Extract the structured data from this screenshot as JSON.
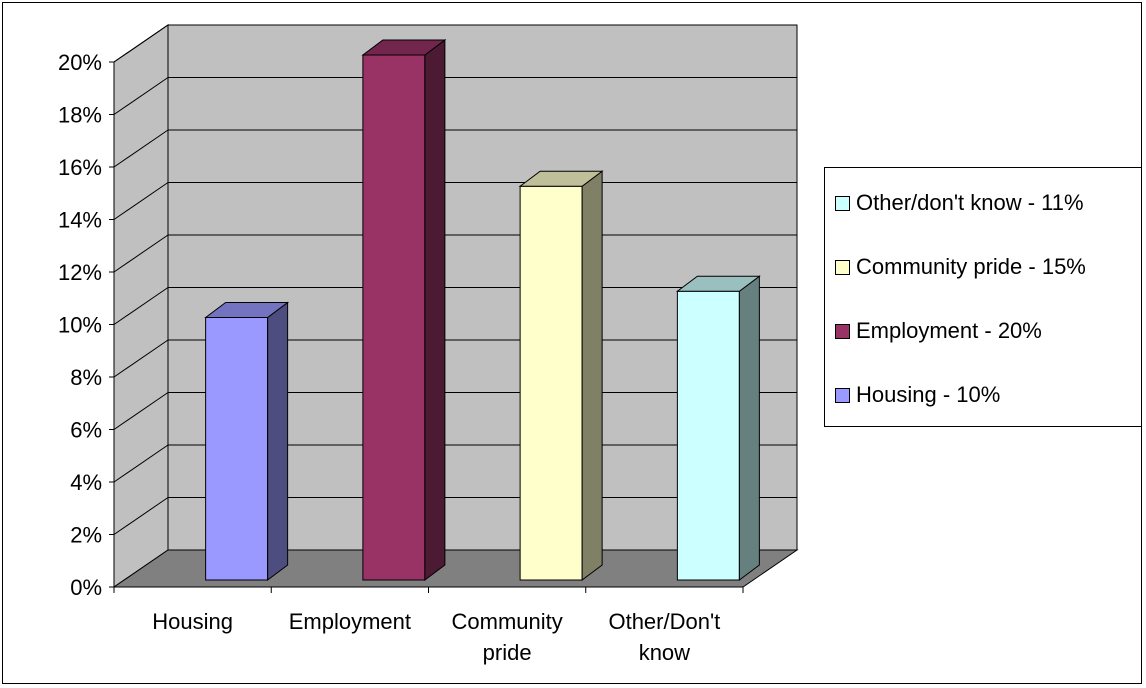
{
  "chart_data": {
    "type": "bar",
    "categories": [
      "Housing",
      "Employment",
      "Community pride",
      "Other/Don't know"
    ],
    "tick_labels": [
      [
        "Housing"
      ],
      [
        "Employment"
      ],
      [
        "Community",
        "pride"
      ],
      [
        "Other/Don't",
        "know"
      ]
    ],
    "values": [
      10,
      20,
      15,
      11
    ],
    "y_ticks": [
      "0%",
      "2%",
      "4%",
      "6%",
      "8%",
      "10%",
      "12%",
      "14%",
      "16%",
      "18%",
      "20%"
    ],
    "ylim": [
      0,
      20
    ],
    "y_unit": "%",
    "three_d": true,
    "grid": true,
    "legend_position": "right",
    "legend": [
      {
        "label": "Other/don't know - 11%",
        "color": "#ccffff"
      },
      {
        "label": "Community pride - 15%",
        "color": "#ffffcc"
      },
      {
        "label": "Employment - 20%",
        "color": "#993366"
      },
      {
        "label": "Housing - 10%",
        "color": "#9999ff"
      }
    ],
    "bar_colors": {
      "front": [
        "#9999ff",
        "#993366",
        "#ffffcc",
        "#ccffff"
      ],
      "side": [
        "#4d4d80",
        "#4d1a33",
        "#808066",
        "#668080"
      ],
      "top": [
        "#7373bf",
        "#73264d",
        "#bfbf99",
        "#99bfbf"
      ]
    },
    "wall_color": "#c0c0c0",
    "floor_color": "#808080"
  }
}
